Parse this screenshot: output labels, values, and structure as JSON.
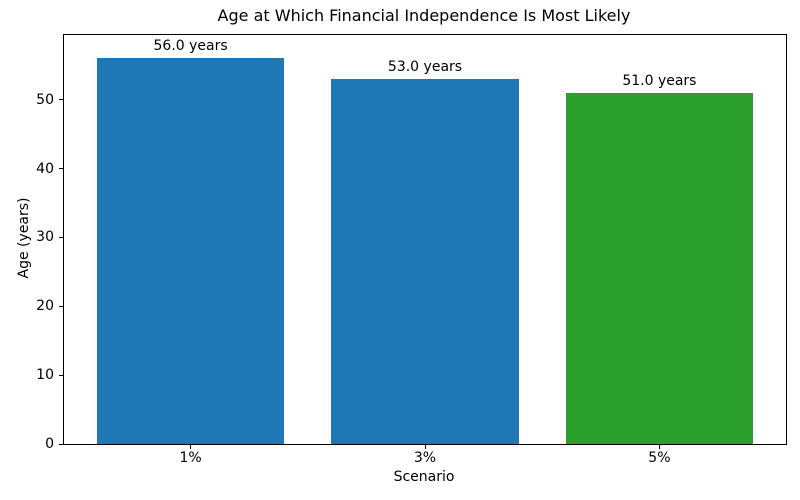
{
  "figure": {
    "background": "#ffffff",
    "text_color": "#000000",
    "spine_color": "#000000"
  },
  "chart_data": {
    "type": "bar",
    "title": "Age at Which Financial Independence Is Most Likely",
    "xlabel": "Scenario",
    "ylabel": "Age (years)",
    "categories": [
      "1%",
      "3%",
      "5%"
    ],
    "values": [
      56.0,
      53.0,
      51.0
    ],
    "bar_labels": [
      "56.0 years",
      "53.0 years",
      "51.0 years"
    ],
    "bar_colors": [
      "#1f77b4",
      "#1f77b4",
      "#2ca02c"
    ],
    "yticks": [
      0,
      10,
      20,
      30,
      40,
      50
    ],
    "ylim": [
      0,
      59.4
    ],
    "bar_width_fraction": 0.8,
    "grid": "off",
    "legend": "none"
  }
}
